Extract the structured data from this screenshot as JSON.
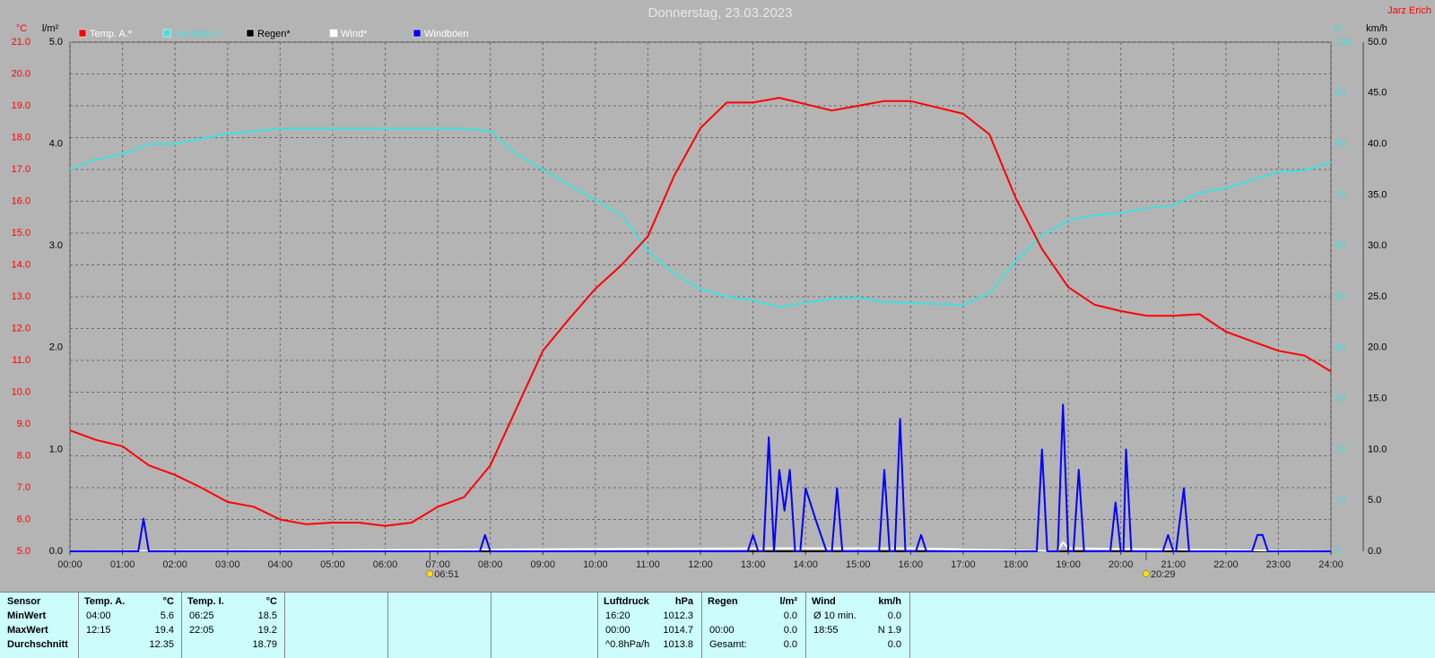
{
  "chart_data": {
    "type": "line",
    "title": "Donnerstag, 23.03.2023",
    "author": "Jarz Erich",
    "xlim": [
      0,
      24
    ],
    "xticks": [
      {
        "value": 0,
        "label": "00:00"
      },
      {
        "value": 1,
        "label": "01:00"
      },
      {
        "value": 2,
        "label": "02:00"
      },
      {
        "value": 3,
        "label": "03:00"
      },
      {
        "value": 4,
        "label": "04:00"
      },
      {
        "value": 5,
        "label": "05:00"
      },
      {
        "value": 6,
        "label": "06:00"
      },
      {
        "value": 7,
        "label": "07:00"
      },
      {
        "value": 8,
        "label": "08:00"
      },
      {
        "value": 9,
        "label": "09:00"
      },
      {
        "value": 10,
        "label": "10:00"
      },
      {
        "value": 11,
        "label": "11:00"
      },
      {
        "value": 12,
        "label": "12:00"
      },
      {
        "value": 13,
        "label": "13:00"
      },
      {
        "value": 14,
        "label": "14:00"
      },
      {
        "value": 15,
        "label": "15:00"
      },
      {
        "value": 16,
        "label": "16:00"
      },
      {
        "value": 17,
        "label": "17:00"
      },
      {
        "value": 18,
        "label": "18:00"
      },
      {
        "value": 19,
        "label": "19:00"
      },
      {
        "value": 20,
        "label": "20:00"
      },
      {
        "value": 21,
        "label": "21:00"
      },
      {
        "value": 22,
        "label": "22:00"
      },
      {
        "value": 23,
        "label": "23:00"
      },
      {
        "value": 24,
        "label": "24:00"
      }
    ],
    "grid": true,
    "axes": {
      "temp": {
        "unit": "°C",
        "color": "#ff0000",
        "lim": [
          5,
          21
        ],
        "ticks": [
          {
            "value": 5,
            "label": "5.0"
          },
          {
            "value": 6,
            "label": "6.0"
          },
          {
            "value": 7,
            "label": "7.0"
          },
          {
            "value": 8,
            "label": "8.0"
          },
          {
            "value": 9,
            "label": "9.0"
          },
          {
            "value": 10,
            "label": "10.0"
          },
          {
            "value": 11,
            "label": "11.0"
          },
          {
            "value": 12,
            "label": "12.0"
          },
          {
            "value": 13,
            "label": "13.0"
          },
          {
            "value": 14,
            "label": "14.0"
          },
          {
            "value": 15,
            "label": "15.0"
          },
          {
            "value": 16,
            "label": "16.0"
          },
          {
            "value": 17,
            "label": "17.0"
          },
          {
            "value": 18,
            "label": "18.0"
          },
          {
            "value": 19,
            "label": "19.0"
          },
          {
            "value": 20,
            "label": "20.0"
          },
          {
            "value": 21,
            "label": "21.0"
          }
        ]
      },
      "rain": {
        "unit": "l/m²",
        "color": "#000000",
        "lim": [
          0,
          5
        ],
        "ticks": [
          {
            "value": 0,
            "label": "0.0"
          },
          {
            "value": 1,
            "label": "1.0"
          },
          {
            "value": 2,
            "label": "2.0"
          },
          {
            "value": 3,
            "label": "3.0"
          },
          {
            "value": 4,
            "label": "4.0"
          },
          {
            "value": 5,
            "label": "5.0"
          }
        ]
      },
      "humidity": {
        "unit": "%",
        "color": "#40e0e0",
        "lim": [
          0,
          100
        ],
        "ticks": [
          0,
          10,
          20,
          30,
          40,
          50,
          60,
          70,
          80,
          90,
          100
        ]
      },
      "wind": {
        "unit": "km/h",
        "color": "#000000",
        "lim": [
          0,
          50
        ],
        "ticks": [
          {
            "value": 0,
            "label": "0.0"
          },
          {
            "value": 5,
            "label": "5.0"
          },
          {
            "value": 10,
            "label": "10.0"
          },
          {
            "value": 15,
            "label": "15.0"
          },
          {
            "value": 20,
            "label": "20.0"
          },
          {
            "value": 25,
            "label": "25.0"
          },
          {
            "value": 30,
            "label": "30.0"
          },
          {
            "value": 35,
            "label": "35.0"
          },
          {
            "value": 40,
            "label": "40.0"
          },
          {
            "value": 45,
            "label": "45.0"
          },
          {
            "value": 50,
            "label": "50.0"
          }
        ]
      }
    },
    "series": [
      {
        "name": "Temp. A.*",
        "color": "#ff0000",
        "label_color": "#ffffff",
        "axis": "temp",
        "x": [
          0,
          0.5,
          1,
          1.5,
          2,
          2.5,
          3,
          3.5,
          4,
          4.5,
          5,
          5.5,
          6,
          6.5,
          7,
          7.5,
          8,
          8.5,
          9,
          9.5,
          10,
          10.5,
          11,
          11.5,
          12,
          12.5,
          13,
          13.5,
          14,
          14.5,
          15,
          15.5,
          16,
          16.5,
          17,
          17.5,
          18,
          18.5,
          19,
          19.5,
          20,
          20.5,
          21,
          21.5,
          22,
          22.5,
          23,
          23.5,
          24
        ],
        "values": [
          8.8,
          8.5,
          8.3,
          7.7,
          7.4,
          7.0,
          6.55,
          6.4,
          6.0,
          5.85,
          5.9,
          5.9,
          5.8,
          5.9,
          6.4,
          6.7,
          7.7,
          9.5,
          11.3,
          12.3,
          13.25,
          14.0,
          14.9,
          16.8,
          18.3,
          19.1,
          19.1,
          19.25,
          19.05,
          18.85,
          19.0,
          19.15,
          19.15,
          18.95,
          18.75,
          18.1,
          16.1,
          14.5,
          13.3,
          12.75,
          12.55,
          12.4,
          12.4,
          12.45,
          11.9,
          11.6,
          11.3,
          11.15,
          10.65
        ]
      },
      {
        "name": "Feuchte A.*",
        "color": "#40e0e0",
        "label_color": "#40e0e0",
        "axis": "humidity",
        "x": [
          0,
          0.5,
          1,
          1.5,
          2,
          2.5,
          3,
          3.5,
          4,
          4.5,
          5,
          5.5,
          6,
          6.5,
          7,
          7.5,
          8,
          8.5,
          9,
          9.5,
          10,
          10.5,
          11,
          11.5,
          12,
          12.5,
          13,
          13.5,
          14,
          14.5,
          15,
          15.5,
          16,
          16.5,
          17,
          17.5,
          18,
          18.5,
          19,
          19.5,
          20,
          20.5,
          21,
          21.5,
          22,
          22.5,
          23,
          23.5,
          24
        ],
        "values": [
          75,
          77,
          78,
          80,
          80,
          81,
          82,
          82.5,
          83,
          83,
          83,
          83,
          83,
          83,
          83,
          83,
          82.5,
          78,
          75,
          72,
          69,
          66,
          59,
          54.5,
          51.5,
          50,
          49.3,
          48,
          48.8,
          49.6,
          49.8,
          49,
          48.8,
          48.6,
          48.4,
          50.7,
          57,
          62,
          65,
          66,
          66.4,
          67.4,
          68,
          70.4,
          71.3,
          73,
          74.5,
          74.8,
          76.4
        ]
      },
      {
        "name": "Regen*",
        "color": "#000000",
        "label_color": "#000000",
        "axis": "rain",
        "x": [
          0,
          24
        ],
        "values": [
          0,
          0
        ]
      },
      {
        "name": "Wind*",
        "color": "#ffffff",
        "label_color": "#ffffff",
        "axis": "wind",
        "x": [
          0,
          13.5,
          14,
          15,
          16,
          18.8,
          18.9,
          19,
          24
        ],
        "values": [
          0,
          0.3,
          0.3,
          0.3,
          0.3,
          0,
          0.9,
          0.3,
          0
        ]
      },
      {
        "name": "Windböen",
        "color": "#0000ff",
        "label_color": "#ffffff",
        "axis": "wind",
        "x": [
          0,
          1.3,
          1.4,
          1.5,
          7.8,
          7.9,
          8.0,
          12.9,
          13.0,
          13.1,
          13.2,
          13.3,
          13.4,
          13.5,
          13.6,
          13.7,
          13.8,
          13.9,
          14.0,
          14.2,
          14.4,
          14.5,
          14.6,
          14.7,
          15.4,
          15.5,
          15.6,
          15.7,
          15.8,
          15.9,
          16.1,
          16.2,
          16.3,
          18.4,
          18.5,
          18.6,
          18.8,
          18.9,
          19.0,
          19.1,
          19.2,
          19.3,
          19.8,
          19.9,
          20.0,
          20.05,
          20.1,
          20.2,
          20.8,
          20.9,
          21.0,
          21.05,
          21.2,
          21.3,
          22.5,
          22.6,
          22.7,
          22.8,
          24
        ],
        "values": [
          0,
          0,
          3.2,
          0,
          0,
          1.6,
          0,
          0,
          1.6,
          0,
          0,
          11.2,
          0,
          8,
          4,
          8,
          0,
          0,
          6.2,
          3,
          0,
          0,
          6.2,
          0,
          0,
          8,
          0,
          0,
          13,
          0,
          0,
          1.6,
          0,
          0,
          10,
          0,
          0,
          14.4,
          0,
          0,
          8,
          0,
          0,
          4.8,
          0,
          0,
          10,
          0,
          0,
          1.6,
          0,
          0,
          6.2,
          0,
          0,
          1.6,
          1.6,
          0,
          0
        ]
      }
    ],
    "sunrise": {
      "x": 6.85,
      "label": "06:51"
    },
    "sunset": {
      "x": 20.483,
      "label": "20:29"
    }
  },
  "table": {
    "row_labels": [
      "Sensor",
      "MinWert",
      "MaxWert",
      "Durchschnitt"
    ],
    "groups": [
      {
        "name": "Temp. A.",
        "unit": "°C",
        "rows": [
          [
            "04:00",
            "5.6"
          ],
          [
            "12:15",
            "19.4"
          ],
          [
            null,
            "12.35"
          ]
        ]
      },
      {
        "name": "Temp. I.",
        "unit": "°C",
        "rows": [
          [
            "06:25",
            "18.5"
          ],
          [
            "22:05",
            "19.2"
          ],
          [
            null,
            "18.79"
          ]
        ]
      },
      {
        "name": "Luftdruck",
        "unit": "hPa",
        "rows": [
          [
            "16:20",
            "1012.3"
          ],
          [
            "00:00",
            "1014.7"
          ],
          [
            "^0.8hPa/h",
            "1013.8"
          ]
        ]
      },
      {
        "name": "Regen",
        "unit": "l/m²",
        "rows": [
          [
            null,
            "0.0"
          ],
          [
            "00:00",
            "0.0"
          ],
          [
            "Gesamt:",
            "0.0"
          ]
        ]
      },
      {
        "name": "Wind",
        "unit": "km/h",
        "rows": [
          [
            "Ø 10 min.",
            "0.0"
          ],
          [
            "18:55",
            "N 1.9"
          ],
          [
            null,
            "0.0"
          ]
        ]
      }
    ]
  }
}
